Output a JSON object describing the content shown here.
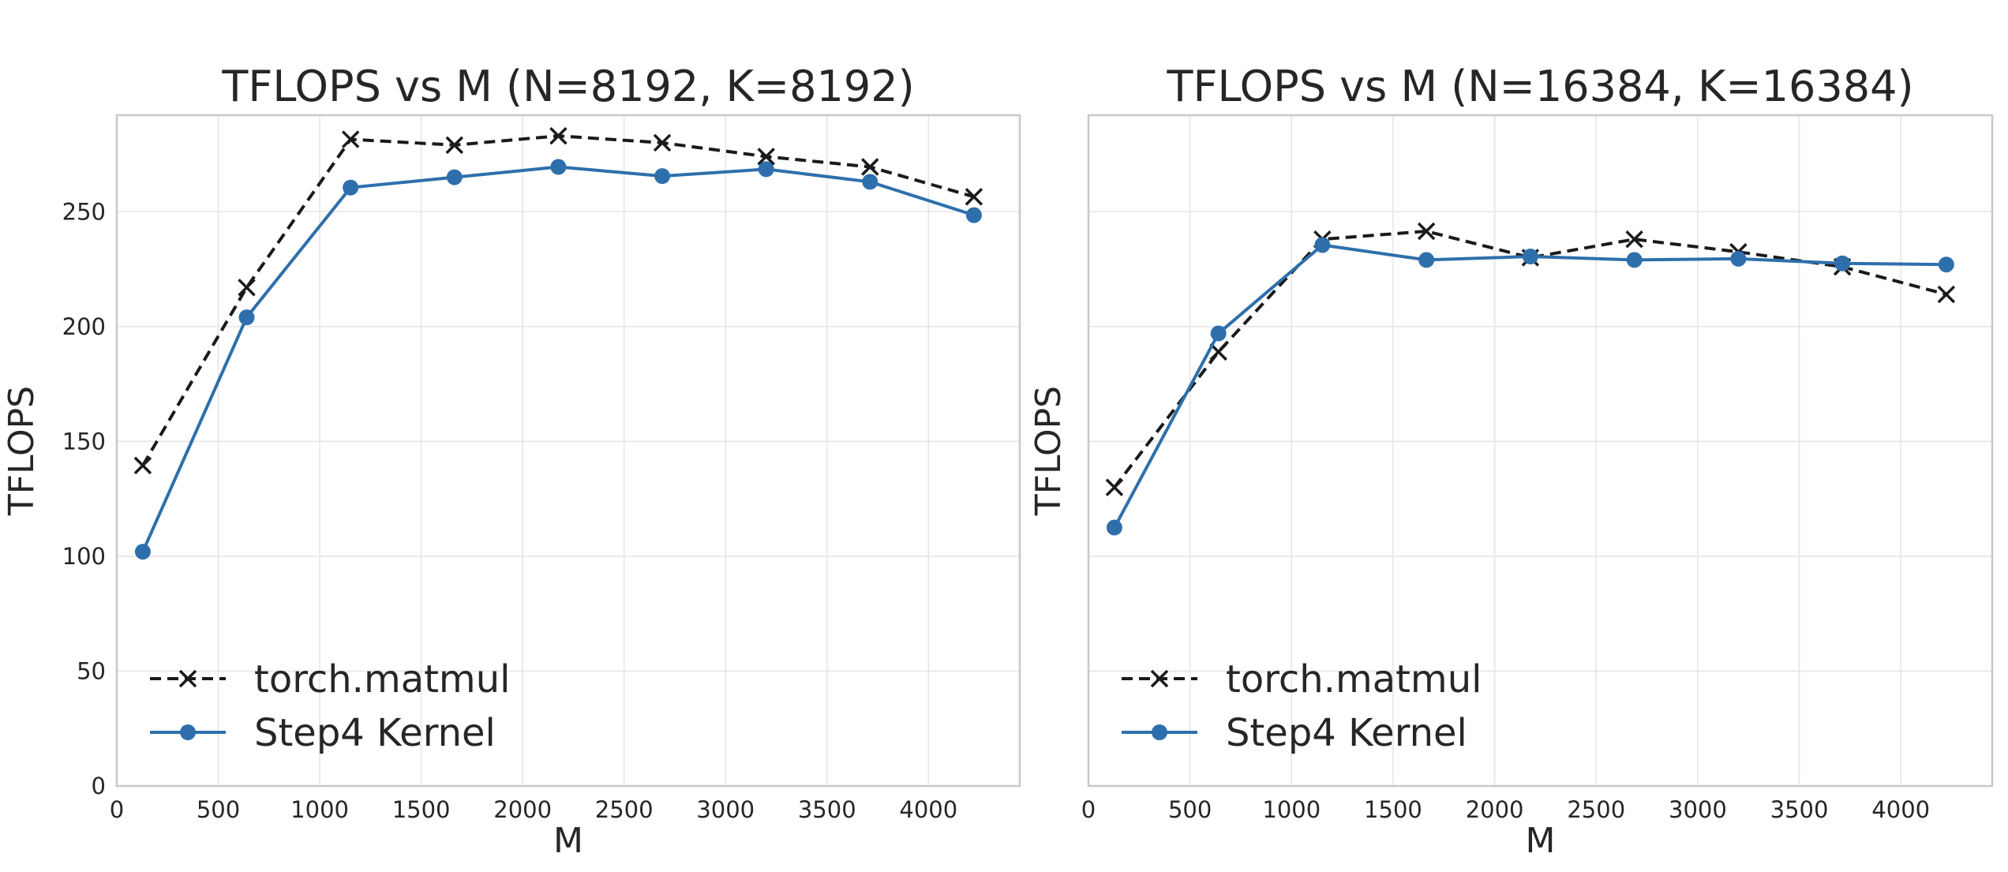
{
  "colors": {
    "torch": "#1a1a1a",
    "step4": "#2e6fab"
  },
  "chart_data": [
    {
      "type": "line",
      "title": "TFLOPS vs M (N=8192, K=8192)",
      "xlabel": "M",
      "ylabel": "TFLOPS",
      "xlim": [
        0,
        4450
      ],
      "ylim": [
        0,
        292
      ],
      "xticks": [
        0,
        500,
        1000,
        1500,
        2000,
        2500,
        3000,
        3500,
        4000
      ],
      "yticks": [
        0,
        50,
        100,
        150,
        200,
        250
      ],
      "show_yticklabels": true,
      "grid": true,
      "legend": "lower-left",
      "x": [
        128,
        640,
        1152,
        1664,
        2176,
        2688,
        3200,
        3712,
        4224
      ],
      "series": [
        {
          "name": "torch.matmul",
          "style": "dashed-x",
          "values": [
            139.5,
            217,
            281.5,
            279,
            283,
            280,
            274,
            269.5,
            256.5
          ]
        },
        {
          "name": "Step4 Kernel",
          "style": "solid-circle",
          "values": [
            102,
            204,
            260.5,
            265,
            269.5,
            265.5,
            268.5,
            263,
            248.5
          ]
        }
      ]
    },
    {
      "type": "line",
      "title": "TFLOPS vs M (N=16384, K=16384)",
      "xlabel": "M",
      "ylabel": "TFLOPS",
      "xlim": [
        0,
        4450
      ],
      "ylim": [
        0,
        292
      ],
      "xticks": [
        0,
        500,
        1000,
        1500,
        2000,
        2500,
        3000,
        3500,
        4000
      ],
      "yticks": [
        0,
        50,
        100,
        150,
        200,
        250
      ],
      "show_yticklabels": false,
      "grid": true,
      "legend": "lower-left",
      "x": [
        128,
        640,
        1152,
        1664,
        2176,
        2688,
        3200,
        3712,
        4224
      ],
      "series": [
        {
          "name": "torch.matmul",
          "style": "dashed-x",
          "values": [
            130,
            189,
            238,
            241.5,
            230,
            238,
            232.5,
            226,
            214
          ]
        },
        {
          "name": "Step4 Kernel",
          "style": "solid-circle",
          "values": [
            112.5,
            197,
            235.5,
            229,
            230.5,
            229,
            229.5,
            227.5,
            227
          ]
        }
      ]
    }
  ]
}
